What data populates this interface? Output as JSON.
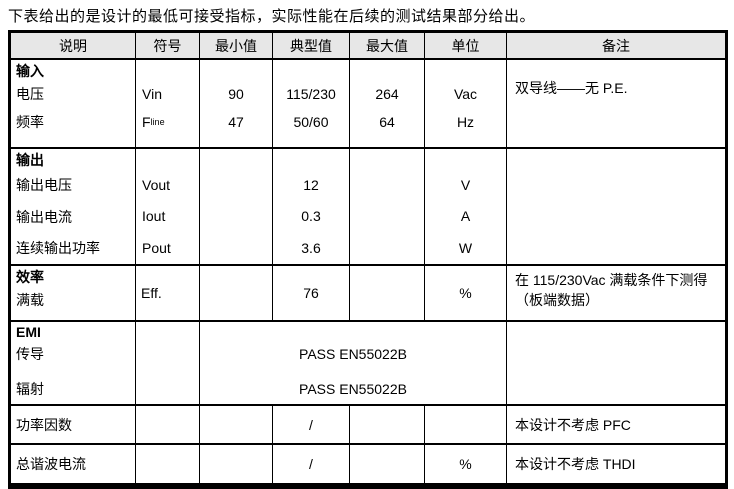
{
  "intro_text": "下表给出的是设计的最低可接受指标，实际性能在后续的测试结果部分给出。",
  "colors": {
    "background": "#ffffff",
    "header_bg": "#e7e7e7",
    "border": "#000000",
    "text": "#000000"
  },
  "table": {
    "headers": {
      "desc": "说明",
      "symbol": "符号",
      "min": "最小值",
      "typ": "典型值",
      "max": "最大值",
      "unit": "单位",
      "remark": "备注"
    },
    "input": {
      "title": "输入",
      "voltage": {
        "label": "电压",
        "symbol": "Vin",
        "min": "90",
        "typ": "115/230",
        "max": "264",
        "unit": "Vac"
      },
      "frequency": {
        "label": "频率",
        "symbol_base": "F",
        "symbol_sub": "line",
        "min": "47",
        "typ": "50/60",
        "max": "64",
        "unit": "Hz"
      },
      "remark": "双导线——无 P.E."
    },
    "output": {
      "title": "输出",
      "voltage": {
        "label": "输出电压",
        "symbol": "Vout",
        "typ": "12",
        "unit": "V"
      },
      "current": {
        "label": "输出电流",
        "symbol": "Iout",
        "typ": "0.3",
        "unit": "A"
      },
      "power": {
        "label": "连续输出功率",
        "symbol": "Pout",
        "typ": "3.6",
        "unit": "W"
      }
    },
    "efficiency": {
      "title": "效率",
      "label": "满载",
      "symbol": "Eff.",
      "typ": "76",
      "unit": "%",
      "remark_line1": "在 115/230Vac 满载条件下测得",
      "remark_line2": "（板端数据）"
    },
    "emi": {
      "title": "EMI",
      "conducted": {
        "label": "传导",
        "value": "PASS EN55022B"
      },
      "radiated": {
        "label": "辐射",
        "value": "PASS EN55022B"
      }
    },
    "power_factor": {
      "label": "功率因数",
      "typ": "/",
      "remark": "本设计不考虑 PFC"
    },
    "thdi": {
      "label": "总谐波电流",
      "typ": "/",
      "unit": "%",
      "remark": "本设计不考虑 THDI"
    }
  }
}
